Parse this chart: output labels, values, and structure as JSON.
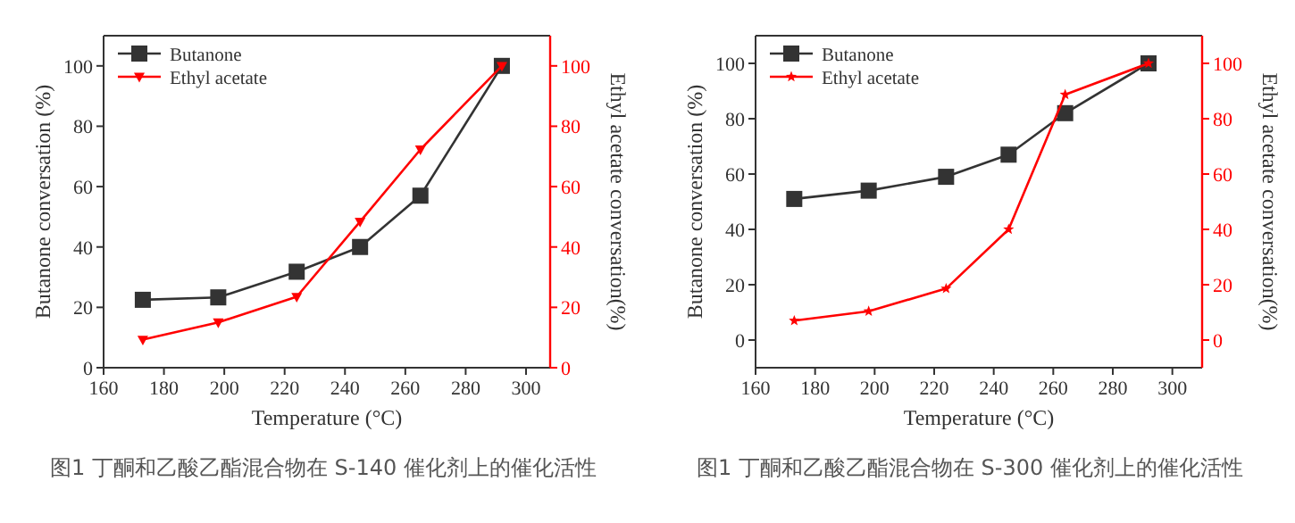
{
  "chart_data": [
    {
      "type": "line",
      "xlabel": "Temperature (°C)",
      "ylabel": "Butanone conversation (%)",
      "y2label": "Ethyl acetate conversation(%)",
      "xlim": [
        160,
        308
      ],
      "xticks": [
        160,
        180,
        200,
        220,
        240,
        260,
        280,
        300
      ],
      "ylim": [
        0,
        110
      ],
      "yticks": [
        0,
        20,
        40,
        60,
        80,
        100
      ],
      "y2lim": [
        0,
        110
      ],
      "y2ticks": [
        0,
        20,
        40,
        60,
        80,
        100
      ],
      "legend": "top left",
      "grid": false,
      "series": [
        {
          "name": "Butanone",
          "color": "#333333",
          "marker": "square",
          "x": [
            173,
            198,
            224,
            245,
            265,
            292
          ],
          "values": [
            22.5,
            23.3,
            31.8,
            40,
            57,
            100
          ]
        },
        {
          "name": "Ethyl acetate",
          "color": "#ff0000",
          "marker": "triangle",
          "axis": "y2",
          "x": [
            173,
            198,
            224,
            245,
            265,
            292
          ],
          "values": [
            9.3,
            15,
            23.5,
            48.4,
            72.3,
            100
          ]
        }
      ],
      "annotations": [
        "图1 丁酮和乙酸乙酯混合物在 S-140 催化剂上的催化活性"
      ]
    },
    {
      "type": "line",
      "xlabel": "Temperature (°C)",
      "ylabel": "Butanone conversation (%)",
      "y2label": "Ethyl acetate conversation(%)",
      "xlim": [
        160,
        310
      ],
      "xticks": [
        160,
        180,
        200,
        220,
        240,
        260,
        280,
        300
      ],
      "ylim": [
        -10,
        110
      ],
      "yticks": [
        0,
        20,
        40,
        60,
        80,
        100
      ],
      "y2lim": [
        -10,
        110
      ],
      "y2ticks": [
        0,
        20,
        40,
        60,
        80,
        100
      ],
      "legend": "top left",
      "grid": false,
      "series": [
        {
          "name": "Butanone",
          "color": "#333333",
          "marker": "square",
          "x": [
            173,
            198,
            224,
            245,
            264,
            292
          ],
          "values": [
            51,
            54,
            59,
            67,
            82,
            100
          ]
        },
        {
          "name": "Ethyl acetate",
          "color": "#ff0000",
          "marker": "star",
          "axis": "y2",
          "x": [
            173,
            198,
            224,
            245,
            264,
            292
          ],
          "values": [
            7,
            10.4,
            18.6,
            40,
            88.7,
            100
          ]
        }
      ],
      "annotations": [
        "图1 丁酮和乙酸乙酯混合物在 S-300 催化剂上的催化活性"
      ]
    }
  ]
}
